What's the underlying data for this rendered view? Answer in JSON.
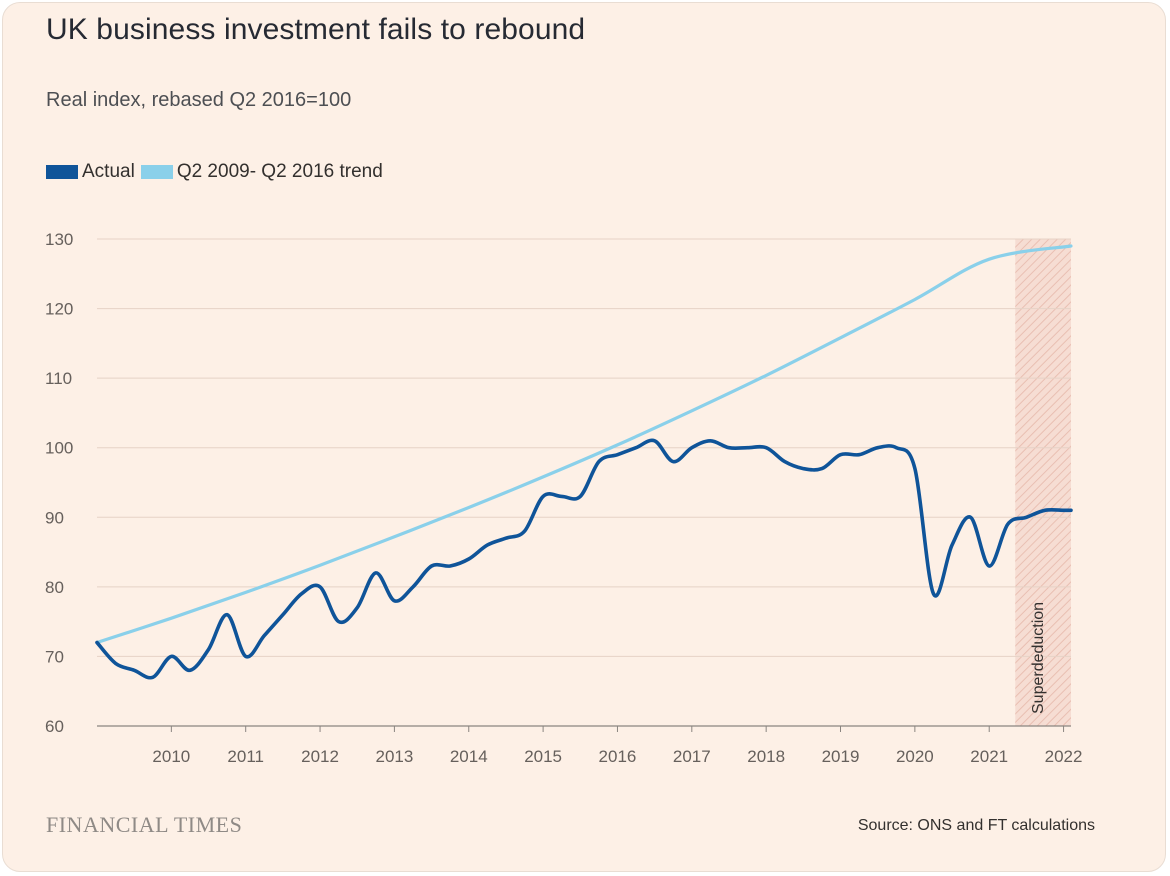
{
  "chart_data": {
    "type": "line",
    "title": "UK business investment fails to rebound",
    "subtitle": "Real index, rebased Q2 2016=100",
    "ylim": [
      60,
      130
    ],
    "yticks": [
      60,
      70,
      80,
      90,
      100,
      110,
      120,
      130
    ],
    "xlim": [
      2009.0,
      2022.1
    ],
    "xticks": [
      "2010",
      "2011",
      "2012",
      "2013",
      "2014",
      "2015",
      "2016",
      "2017",
      "2018",
      "2019",
      "2020",
      "2021",
      "2022"
    ],
    "grid": true,
    "legend_position": "top-left",
    "series": [
      {
        "name": "Actual",
        "color": "#0f5499",
        "points": [
          [
            2009.0,
            72
          ],
          [
            2009.25,
            69
          ],
          [
            2009.5,
            68
          ],
          [
            2009.75,
            67
          ],
          [
            2010.0,
            70
          ],
          [
            2010.25,
            68
          ],
          [
            2010.5,
            71
          ],
          [
            2010.75,
            76
          ],
          [
            2011.0,
            70
          ],
          [
            2011.25,
            73
          ],
          [
            2011.5,
            76
          ],
          [
            2011.75,
            79
          ],
          [
            2012.0,
            80
          ],
          [
            2012.25,
            75
          ],
          [
            2012.5,
            77
          ],
          [
            2012.75,
            82
          ],
          [
            2013.0,
            78
          ],
          [
            2013.25,
            80
          ],
          [
            2013.5,
            83
          ],
          [
            2013.75,
            83
          ],
          [
            2014.0,
            84
          ],
          [
            2014.25,
            86
          ],
          [
            2014.5,
            87
          ],
          [
            2014.75,
            88
          ],
          [
            2015.0,
            93
          ],
          [
            2015.25,
            93
          ],
          [
            2015.5,
            93
          ],
          [
            2015.75,
            98
          ],
          [
            2016.0,
            99
          ],
          [
            2016.25,
            100
          ],
          [
            2016.5,
            101
          ],
          [
            2016.75,
            98
          ],
          [
            2017.0,
            100
          ],
          [
            2017.25,
            101
          ],
          [
            2017.5,
            100
          ],
          [
            2017.75,
            100
          ],
          [
            2018.0,
            100
          ],
          [
            2018.25,
            98
          ],
          [
            2018.5,
            97
          ],
          [
            2018.75,
            97
          ],
          [
            2019.0,
            99
          ],
          [
            2019.25,
            99
          ],
          [
            2019.5,
            100
          ],
          [
            2019.75,
            100
          ],
          [
            2020.0,
            97
          ],
          [
            2020.25,
            79
          ],
          [
            2020.5,
            86
          ],
          [
            2020.75,
            90
          ],
          [
            2021.0,
            83
          ],
          [
            2021.25,
            89
          ],
          [
            2021.5,
            90
          ],
          [
            2021.75,
            91
          ],
          [
            2022.0,
            91
          ],
          [
            2022.1,
            91
          ]
        ]
      },
      {
        "name": "Q2 2009- Q2 2016 trend",
        "color": "#8ad0ea",
        "points": [
          [
            2009.0,
            72
          ],
          [
            2010.0,
            75.5
          ],
          [
            2011.0,
            79.2
          ],
          [
            2012.0,
            83.1
          ],
          [
            2013.0,
            87.2
          ],
          [
            2014.0,
            91.4
          ],
          [
            2015.0,
            95.8
          ],
          [
            2016.0,
            100.4
          ],
          [
            2017.0,
            105.3
          ],
          [
            2018.0,
            110.4
          ],
          [
            2019.0,
            115.8
          ],
          [
            2020.0,
            121.3
          ],
          [
            2021.0,
            127.1
          ],
          [
            2022.1,
            129
          ]
        ]
      }
    ],
    "annotation": {
      "label": "Superdeduction",
      "x_start": 2021.35,
      "x_end": 2022.1
    }
  },
  "footer": {
    "brand": "FINANCIAL TIMES",
    "source": "Source: ONS and FT calculations"
  }
}
